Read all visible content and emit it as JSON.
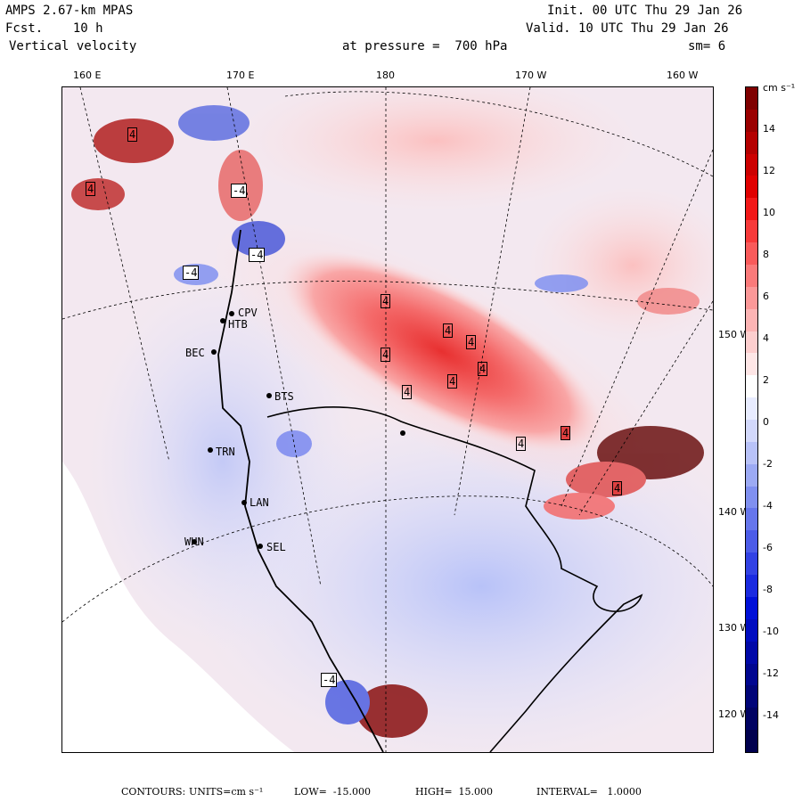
{
  "header": {
    "model": "AMPS 2.67-km MPAS",
    "forecast": "Fcst.    10 h",
    "variable": "Vertical velocity",
    "pressure_label": "at pressure =  700 hPa",
    "init": "Init. 00 UTC Thu 29 Jan 26",
    "valid": "Valid. 10 UTC Thu 29 Jan 26",
    "smoothing": "sm= 6"
  },
  "axes": {
    "top_longitudes": [
      "160 E",
      "170 E",
      "180",
      "170 W",
      "160 W"
    ],
    "right_longitudes": [
      "150 W",
      "140 W",
      "130 W",
      "120 W"
    ]
  },
  "colorbar": {
    "units": "cm s⁻¹",
    "tick_labels": [
      "14",
      "12",
      "10",
      "8",
      "6",
      "4",
      "2",
      "0",
      "-2",
      "-4",
      "-6",
      "-8",
      "-10",
      "-12",
      "-14"
    ],
    "colors": [
      "#7f0000",
      "#9a0000",
      "#b40000",
      "#cc0000",
      "#e00000",
      "#f21818",
      "#f73a3a",
      "#f95a5a",
      "#fa7a7a",
      "#fb9898",
      "#fcb4b4",
      "#fdcece",
      "#fee6e6",
      "#ffffff",
      "#e8ecff",
      "#d2d8fb",
      "#b8c2f8",
      "#9caaf4",
      "#8090f0",
      "#6676ec",
      "#4c5ce8",
      "#3242e4",
      "#1a2ae0",
      "#0010d8",
      "#000cc0",
      "#0008a8",
      "#000690",
      "#000478",
      "#000262",
      "#00004e"
    ]
  },
  "stations": [
    "CPV",
    "HTB",
    "BEC",
    "BTS",
    "TRN",
    "LAN",
    "WHN",
    "SEL"
  ],
  "extrema_markers": [
    "4",
    "4",
    "4",
    "4",
    "4",
    "4",
    "4",
    "4",
    "4",
    "4",
    "4",
    "4",
    "-4",
    "-4",
    "-4",
    "-4"
  ],
  "footer": {
    "contours_label": "CONTOURS:",
    "units": "UNITS=cm s⁻¹",
    "low": "LOW=  -15.000",
    "high": "HIGH=  15.000",
    "interval": "INTERVAL=   1.0000"
  }
}
